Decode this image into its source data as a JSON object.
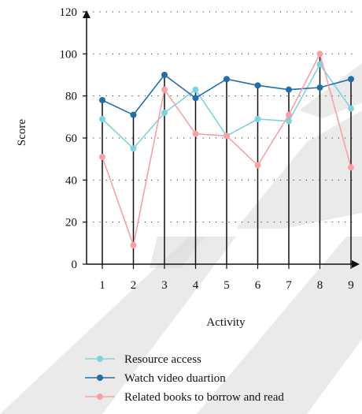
{
  "chart_data": {
    "type": "line",
    "title": "",
    "xlabel": "Activity",
    "ylabel": "Score",
    "categories": [
      "1",
      "2",
      "3",
      "4",
      "5",
      "6",
      "7",
      "8",
      "9"
    ],
    "ylim": [
      0,
      120
    ],
    "yticks": [
      0,
      20,
      40,
      60,
      80,
      100,
      120
    ],
    "grid": "dotted-horizontal",
    "vertical_drop_lines": true,
    "legend_position": "bottom",
    "series": [
      {
        "name": "Resource access",
        "color": "#7fd3de",
        "values": [
          69,
          55,
          72,
          83,
          61,
          69,
          68,
          95,
          74
        ]
      },
      {
        "name": "Watch video duartion",
        "color": "#1f6fa8",
        "values": [
          78,
          71,
          90,
          79,
          88,
          85,
          83,
          84,
          88
        ]
      },
      {
        "name": "Related books to borrow and read",
        "color": "#f7a1a6",
        "values": [
          51,
          9,
          83,
          62,
          61,
          47,
          71,
          100,
          46
        ]
      }
    ]
  },
  "watermark_color": "#d9d9d9"
}
